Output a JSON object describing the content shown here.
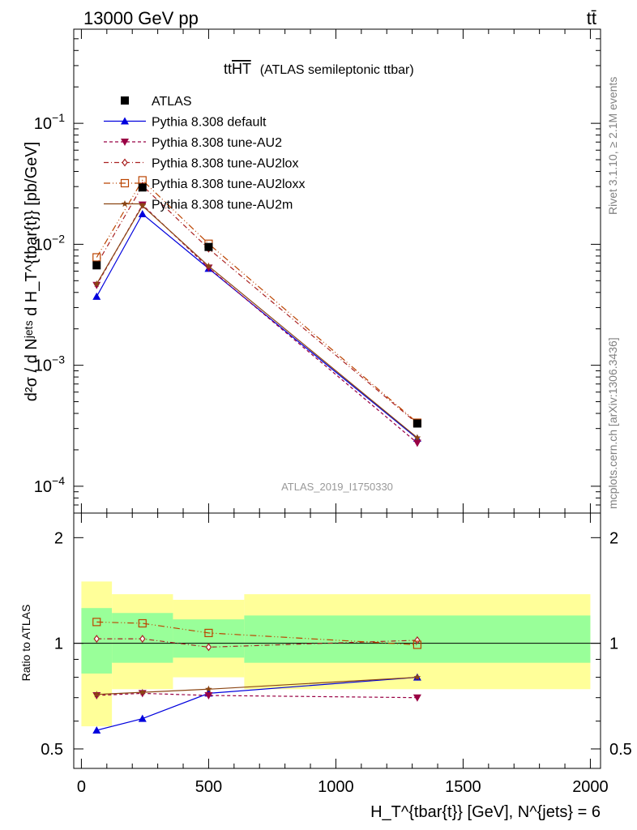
{
  "header": {
    "energy_label": "13000 GeV pp",
    "process_label": "tt̄"
  },
  "main_panel": {
    "title_main": "tt",
    "title_overline": "HT",
    "title_sub": "(ATLAS semileptonic ttbar)",
    "ylabel": "d²σ / d Nʲᵉᵗˢ d H_T^{tbar{t}} [pb/GeV]",
    "watermark": "ATLAS_2019_I1750330",
    "y_ticks": [
      {
        "base": "10",
        "exp": "−1",
        "value": 0.1
      },
      {
        "base": "10",
        "exp": "−2",
        "value": 0.01
      },
      {
        "base": "10",
        "exp": "−3",
        "value": 0.001
      },
      {
        "base": "10",
        "exp": "−4",
        "value": 0.0001
      }
    ]
  },
  "ratio_panel": {
    "ylabel": "Ratio to ATLAS",
    "y_ticks": [
      "2",
      "1",
      "0.5"
    ],
    "x_ticks": [
      "0",
      "500",
      "1000",
      "1500",
      "2000"
    ],
    "xlabel": "H_T^{tbar{t}} [GeV], N^{jets} = 6"
  },
  "side_labels": {
    "rivet": "Rivet 3.1.10, ≥ 2.1M events",
    "mcplots": "mcplots.cern.ch [arXiv:1306.3436]"
  },
  "chart_data": {
    "type": "line",
    "title": "tt HT (ATLAS semileptonic ttbar)",
    "xlabel": "H_T^{tbar{t}} [GeV], N^{jets} = 6",
    "ylabel": "d²σ / d N^{jets} d H_T^{tbar{t}} [pb/GeV]",
    "xlim": [
      -30,
      2040
    ],
    "ylim": [
      6e-05,
      0.6
    ],
    "y_scale": "log",
    "ratio_ylim": [
      0.44,
      2.35
    ],
    "ratio_ylabel": "Ratio to ATLAS",
    "legend_position": "top-left",
    "bins": [
      [
        0,
        120
      ],
      [
        120,
        360
      ],
      [
        360,
        640
      ],
      [
        640,
        2000
      ]
    ],
    "x": [
      60,
      240,
      500,
      1320
    ],
    "data": {
      "name": "ATLAS",
      "values": [
        0.0067,
        0.0295,
        0.0095,
        0.00033
      ],
      "band_inner_ratio": [
        [
          0.82,
          1.26
        ],
        [
          0.88,
          1.22
        ],
        [
          0.91,
          1.17
        ],
        [
          0.88,
          1.2
        ]
      ],
      "band_outer_ratio": [
        [
          0.58,
          1.5
        ],
        [
          0.74,
          1.38
        ],
        [
          0.8,
          1.33
        ],
        [
          0.74,
          1.38
        ]
      ]
    },
    "series": [
      {
        "name": "Pythia 8.308 default",
        "color": "#0000dd",
        "marker": "triangle-up",
        "dash": "solid",
        "values": [
          0.0037,
          0.0178,
          0.0063,
          0.000248
        ],
        "ratio": [
          0.565,
          0.61,
          0.72,
          0.8
        ]
      },
      {
        "name": "Pythia 8.308 tune-AU2",
        "color": "#990044",
        "marker": "triangle-down",
        "dash": "dash",
        "values": [
          0.0046,
          0.0212,
          0.0064,
          0.000228
        ],
        "ratio": [
          0.71,
          0.72,
          0.71,
          0.7
        ]
      },
      {
        "name": "Pythia 8.308 tune-AU2lox",
        "color": "#aa2222",
        "marker": "diamond-open",
        "dash": "dashdot",
        "values": [
          0.0068,
          0.0305,
          0.0092,
          0.00033
        ],
        "ratio": [
          1.03,
          1.03,
          0.975,
          1.02
        ]
      },
      {
        "name": "Pythia 8.308 tune-AU2loxx",
        "color": "#bb4400",
        "marker": "square-open",
        "dash": "dashdotdot",
        "values": [
          0.0078,
          0.0338,
          0.0101,
          0.000335
        ],
        "ratio": [
          1.15,
          1.14,
          1.07,
          0.99
        ]
      },
      {
        "name": "Pythia 8.308 tune-AU2m",
        "color": "#8b4513",
        "marker": "star",
        "dash": "solid",
        "values": [
          0.0047,
          0.0208,
          0.0066,
          0.000252
        ],
        "ratio": [
          0.715,
          0.725,
          0.74,
          0.8
        ]
      }
    ],
    "colors": {
      "band_inner": "#99ff99",
      "band_outer": "#ffff99",
      "data_marker": "#000000"
    }
  }
}
